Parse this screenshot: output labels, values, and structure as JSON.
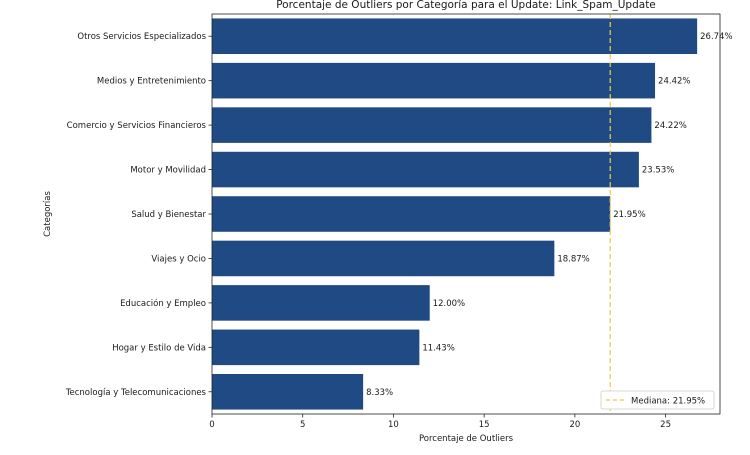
{
  "chart_data": {
    "type": "bar",
    "orientation": "horizontal",
    "title": "Porcentaje de Outliers por Categoría para el Update: Link_Spam_Update",
    "xlabel": "Porcentaje de Outliers",
    "ylabel": "Categorías",
    "categories": [
      "Otros Servicios Especializados",
      "Medios y Entretenimiento",
      "Comercio y Servicios Financieros",
      "Motor y Movilidad",
      "Salud y Bienestar",
      "Viajes y Ocio",
      "Educación y Empleo",
      "Hogar y Estilo de Vida",
      "Tecnología y Telecomunicaciones"
    ],
    "values": [
      26.74,
      24.42,
      24.22,
      23.53,
      21.95,
      18.87,
      12.0,
      11.43,
      8.33
    ],
    "data_labels": [
      "26.74%",
      "24.42%",
      "24.22%",
      "23.53%",
      "21.95%",
      "18.87%",
      "12.00%",
      "11.43%",
      "8.33%"
    ],
    "xlim": [
      0,
      28
    ],
    "xticks": [
      0,
      5,
      10,
      15,
      20,
      25
    ],
    "median": {
      "value": 21.95,
      "label": "Mediana: 21.95%"
    },
    "legend_position": "bottom-right",
    "grid": false,
    "colors": {
      "bar": "#1f4a84",
      "median_line": "#f5c842"
    }
  }
}
